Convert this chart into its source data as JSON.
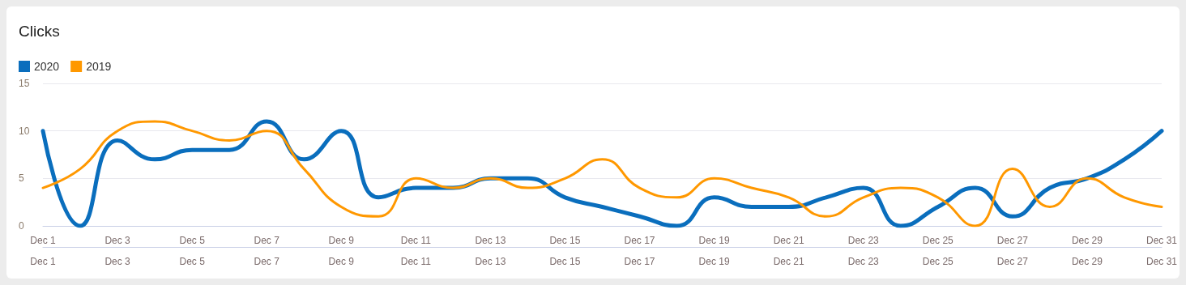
{
  "chart_data": {
    "type": "line",
    "title": "Clicks",
    "x": [
      "--12-01",
      "--12-02",
      "--12-03",
      "--12-04",
      "--12-05",
      "--12-06",
      "--12-07",
      "--12-08",
      "--12-09",
      "--12-10",
      "--12-11",
      "--12-12",
      "--12-13",
      "--12-14",
      "--12-15",
      "--12-16",
      "--12-17",
      "--12-18",
      "--12-19",
      "--12-20",
      "--12-21",
      "--12-22",
      "--12-23",
      "--12-24",
      "--12-25",
      "--12-26",
      "--12-27",
      "--12-28",
      "--12-29",
      "--12-30",
      "--12-31"
    ],
    "xlim": [
      "--12-01",
      "--12-31"
    ],
    "xticks": [
      {
        "value": "--12-01",
        "label": "Dec 1"
      },
      {
        "value": "--12-03",
        "label": "Dec 3"
      },
      {
        "value": "--12-05",
        "label": "Dec 5"
      },
      {
        "value": "--12-07",
        "label": "Dec 7"
      },
      {
        "value": "--12-09",
        "label": "Dec 9"
      },
      {
        "value": "--12-11",
        "label": "Dec 11"
      },
      {
        "value": "--12-13",
        "label": "Dec 13"
      },
      {
        "value": "--12-15",
        "label": "Dec 15"
      },
      {
        "value": "--12-17",
        "label": "Dec 17"
      },
      {
        "value": "--12-19",
        "label": "Dec 19"
      },
      {
        "value": "--12-21",
        "label": "Dec 21"
      },
      {
        "value": "--12-23",
        "label": "Dec 23"
      },
      {
        "value": "--12-25",
        "label": "Dec 25"
      },
      {
        "value": "--12-27",
        "label": "Dec 27"
      },
      {
        "value": "--12-29",
        "label": "Dec 29"
      },
      {
        "value": "--12-31",
        "label": "Dec 31"
      }
    ],
    "x2lim": [
      "--12-01",
      "--12-31"
    ],
    "x2ticks": [
      {
        "value": "--12-01",
        "label": "Dec 1"
      },
      {
        "value": "--12-03",
        "label": "Dec 3"
      },
      {
        "value": "--12-05",
        "label": "Dec 5"
      },
      {
        "value": "--12-07",
        "label": "Dec 7"
      },
      {
        "value": "--12-09",
        "label": "Dec 9"
      },
      {
        "value": "--12-11",
        "label": "Dec 11"
      },
      {
        "value": "--12-13",
        "label": "Dec 13"
      },
      {
        "value": "--12-15",
        "label": "Dec 15"
      },
      {
        "value": "--12-17",
        "label": "Dec 17"
      },
      {
        "value": "--12-19",
        "label": "Dec 19"
      },
      {
        "value": "--12-21",
        "label": "Dec 21"
      },
      {
        "value": "--12-23",
        "label": "Dec 23"
      },
      {
        "value": "--12-25",
        "label": "Dec 25"
      },
      {
        "value": "--12-27",
        "label": "Dec 27"
      },
      {
        "value": "--12-29",
        "label": "Dec 29"
      },
      {
        "value": "--12-31",
        "label": "Dec 31"
      }
    ],
    "series": [
      {
        "name": "2020",
        "color": "#0a6ebd",
        "values": [
          10,
          0,
          9,
          7,
          8,
          8,
          11,
          7,
          10,
          3,
          4,
          4,
          5,
          5,
          3,
          2,
          1,
          0,
          3,
          2,
          2,
          3,
          4,
          0,
          2,
          4,
          1,
          4,
          5,
          7,
          10
        ]
      },
      {
        "name": "2019",
        "color": "#ff9800",
        "values": [
          4,
          6,
          10,
          11,
          10,
          9,
          10,
          6,
          2,
          1,
          5,
          4,
          5,
          4,
          5,
          7,
          4,
          3,
          5,
          4,
          3,
          1,
          3,
          4,
          3,
          0,
          6,
          2,
          5,
          3,
          2
        ]
      }
    ],
    "ylim": [
      0,
      15
    ],
    "yticks": [
      0,
      5,
      10,
      15
    ],
    "grid": "y",
    "legend": "top left",
    "marker": "none",
    "line_style": "solid"
  }
}
